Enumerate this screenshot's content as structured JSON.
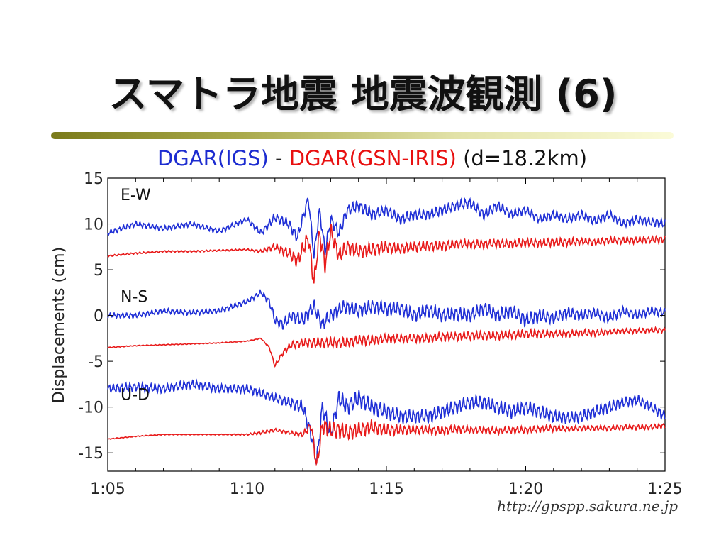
{
  "slide": {
    "title": "スマトラ地震 地震波観測 (6)",
    "subtitle_part1": "DGAR(IGS)",
    "subtitle_sep": " - ",
    "subtitle_part2": "DGAR(GSN-IRIS)",
    "subtitle_part3": " (d=18.2km)",
    "credit": "http://gpspp.sakura.ne.jp"
  },
  "chart_data": {
    "type": "line",
    "ylabel": "Displacements (cm)",
    "xlabel": "",
    "x_ticks": [
      "1:05",
      "1:10",
      "1:15",
      "1:20",
      "1:25"
    ],
    "x_range_minutes": [
      65,
      85
    ],
    "ylim": [
      -17,
      15
    ],
    "y_ticks": [
      15,
      10,
      5,
      0,
      -5,
      -10,
      -15
    ],
    "grid": false,
    "colors": {
      "igs": "#1f2fd6",
      "gsn": "#e81a1a"
    },
    "panels": [
      {
        "label": "E-W",
        "series": [
          {
            "source": "DGAR(IGS)",
            "color": "#1f2fd6",
            "x": [
              65,
              66,
              67,
              68,
              69,
              70,
              70.5,
              71,
              71.5,
              71.8,
              72.2,
              72.4,
              72.6,
              72.8,
              73,
              73.3,
              73.6,
              74,
              74.5,
              75,
              75.5,
              76,
              76.5,
              77,
              77.5,
              78,
              78.5,
              79,
              79.5,
              80,
              80.5,
              81,
              81.5,
              82,
              82.5,
              83,
              83.5,
              84,
              84.5,
              85
            ],
            "y": [
              9,
              10,
              9.5,
              10,
              9.2,
              10.5,
              9,
              10.7,
              10,
              8.5,
              12.8,
              6.5,
              11.5,
              7,
              10.5,
              9,
              11.5,
              12,
              11,
              11.5,
              10.5,
              11,
              11,
              11.5,
              12,
              12.3,
              11,
              12,
              11,
              11.5,
              10.5,
              11,
              10.5,
              11,
              10.3,
              11,
              10,
              10.5,
              10.2,
              10
            ],
            "wiggle_amp": [
              0.3,
              0.3,
              0.3,
              0.3,
              0.3,
              0.3,
              0.4,
              0.5,
              0.6,
              0.6,
              0.6,
              0.6,
              0.6,
              0.6,
              0.7,
              0.7,
              0.7,
              0.7,
              0.7,
              0.6,
              0.6,
              0.6,
              0.6,
              0.6,
              0.6,
              0.6,
              0.6,
              0.6,
              0.5,
              0.5,
              0.5,
              0.5,
              0.5,
              0.5,
              0.5,
              0.5,
              0.5,
              0.5,
              0.5,
              0.5
            ]
          },
          {
            "source": "DGAR(GSN-IRIS)",
            "color": "#e81a1a",
            "x": [
              65,
              66,
              67,
              68,
              69,
              70,
              70.5,
              71,
              71.5,
              71.8,
              72.2,
              72.4,
              72.6,
              72.8,
              73,
              73.3,
              73.6,
              74,
              74.5,
              75,
              75.5,
              76,
              76.5,
              77,
              77.5,
              78,
              78.5,
              79,
              79.5,
              80,
              80.5,
              81,
              81.5,
              82,
              82.5,
              83,
              83.5,
              84,
              84.5,
              85
            ],
            "y": [
              6.5,
              6.8,
              7,
              7,
              7.1,
              7.2,
              7,
              7.5,
              6.8,
              6,
              8.5,
              3.5,
              9,
              5.5,
              9.2,
              6.5,
              7.5,
              7,
              7.2,
              7.5,
              7.3,
              7.5,
              7.6,
              7.6,
              7.8,
              7.8,
              7.8,
              7.9,
              7.8,
              8,
              7.9,
              8,
              8,
              8.1,
              8,
              8.2,
              8.2,
              8.2,
              8.3,
              8.3
            ],
            "wiggle_amp": [
              0.1,
              0.1,
              0.1,
              0.1,
              0.1,
              0.1,
              0.2,
              0.4,
              0.6,
              0.8,
              1.0,
              1.0,
              1.0,
              1.0,
              1.0,
              0.9,
              0.9,
              0.8,
              0.8,
              0.7,
              0.6,
              0.6,
              0.6,
              0.6,
              0.5,
              0.5,
              0.5,
              0.5,
              0.5,
              0.5,
              0.5,
              0.5,
              0.5,
              0.4,
              0.4,
              0.4,
              0.4,
              0.4,
              0.4,
              0.4
            ]
          }
        ]
      },
      {
        "label": "N-S",
        "series": [
          {
            "source": "DGAR(IGS)",
            "color": "#1f2fd6",
            "x": [
              65,
              66,
              67,
              68,
              69,
              70,
              70.5,
              70.8,
              71,
              71.3,
              71.6,
              72,
              72.4,
              72.7,
              73,
              73.5,
              74,
              74.5,
              75,
              75.5,
              76,
              76.5,
              77,
              77.5,
              78,
              78.5,
              79,
              79.5,
              80,
              80.5,
              81,
              81.5,
              82,
              82.5,
              83,
              83.5,
              84,
              84.5,
              85
            ],
            "y": [
              0,
              0,
              0.5,
              0.3,
              0.5,
              1.5,
              2.5,
              1.5,
              -0.5,
              -1,
              0,
              -0.5,
              1,
              -1,
              0,
              1,
              0.5,
              1,
              0.7,
              0.8,
              0,
              0.6,
              0,
              0.2,
              0,
              0.8,
              0,
              0.5,
              -0.5,
              0,
              -0.3,
              0.3,
              0,
              0.3,
              -0.3,
              0.5,
              0,
              0.5,
              0.3
            ],
            "wiggle_amp": [
              0.3,
              0.3,
              0.3,
              0.3,
              0.3,
              0.3,
              0.3,
              0.4,
              0.5,
              0.6,
              0.7,
              0.8,
              0.8,
              0.8,
              0.8,
              0.8,
              0.8,
              0.8,
              0.8,
              0.8,
              0.8,
              0.8,
              0.8,
              0.8,
              0.8,
              0.8,
              0.8,
              0.8,
              0.8,
              0.8,
              0.7,
              0.7,
              0.6,
              0.6,
              0.6,
              0.5,
              0.5,
              0.5,
              0.5
            ]
          },
          {
            "source": "DGAR(GSN-IRIS)",
            "color": "#e81a1a",
            "x": [
              65,
              66,
              67,
              68,
              69,
              70,
              70.5,
              70.8,
              71,
              71.3,
              71.6,
              72,
              72.4,
              72.7,
              73,
              73.5,
              74,
              74.5,
              75,
              75.5,
              76,
              76.5,
              77,
              77.5,
              78,
              78.5,
              79,
              79.5,
              80,
              80.5,
              81,
              81.5,
              82,
              82.5,
              83,
              83.5,
              84,
              84.5,
              85
            ],
            "y": [
              -3.5,
              -3.3,
              -3.2,
              -3.1,
              -3,
              -2.8,
              -2.5,
              -3.5,
              -5.5,
              -4,
              -3.2,
              -3,
              -3,
              -3,
              -3,
              -3,
              -2.7,
              -2.7,
              -2.5,
              -2.5,
              -2.5,
              -2.5,
              -2.3,
              -2.3,
              -2.2,
              -2.2,
              -2.2,
              -2.1,
              -2,
              -2,
              -2,
              -2,
              -1.9,
              -1.9,
              -1.8,
              -1.7,
              -1.7,
              -1.6,
              -1.6
            ],
            "wiggle_amp": [
              0.05,
              0.05,
              0.05,
              0.05,
              0.05,
              0.05,
              0.05,
              0.1,
              0.2,
              0.3,
              0.4,
              0.5,
              0.6,
              0.6,
              0.6,
              0.6,
              0.6,
              0.6,
              0.5,
              0.5,
              0.5,
              0.5,
              0.5,
              0.5,
              0.5,
              0.5,
              0.5,
              0.5,
              0.5,
              0.5,
              0.4,
              0.4,
              0.4,
              0.4,
              0.3,
              0.3,
              0.3,
              0.3,
              0.3
            ]
          }
        ]
      },
      {
        "label": "U-D",
        "series": [
          {
            "source": "DGAR(IGS)",
            "color": "#1f2fd6",
            "x": [
              65,
              66,
              67,
              68,
              69,
              70,
              70.5,
              71,
              71.5,
              72,
              72.3,
              72.5,
              72.7,
              73,
              73.3,
              73.6,
              74,
              74.5,
              75,
              75.5,
              76,
              76.5,
              77,
              77.5,
              78,
              78.5,
              79,
              79.5,
              80,
              80.5,
              81,
              81.5,
              82,
              82.5,
              83,
              83.5,
              84,
              84.5,
              85
            ],
            "y": [
              -8,
              -7.8,
              -8,
              -7.5,
              -8,
              -8,
              -8.5,
              -9,
              -9.5,
              -10,
              -13,
              -16,
              -10,
              -13,
              -9,
              -10,
              -9,
              -10,
              -10.5,
              -11,
              -11,
              -11,
              -10.5,
              -10,
              -9.5,
              -9.5,
              -10,
              -10.5,
              -10,
              -10.5,
              -11,
              -11.2,
              -11,
              -10.5,
              -10,
              -9.5,
              -9.2,
              -10,
              -11
            ],
            "wiggle_amp": [
              0.5,
              0.5,
              0.5,
              0.5,
              0.5,
              0.5,
              0.5,
              0.5,
              0.6,
              0.8,
              0.9,
              0.9,
              1.0,
              1.0,
              1.0,
              1.0,
              1.0,
              0.9,
              0.9,
              0.8,
              0.8,
              0.8,
              0.8,
              0.8,
              0.8,
              0.8,
              0.8,
              0.8,
              0.8,
              0.8,
              0.7,
              0.7,
              0.7,
              0.7,
              0.7,
              0.6,
              0.6,
              0.6,
              0.6
            ]
          },
          {
            "source": "DGAR(GSN-IRIS)",
            "color": "#e81a1a",
            "x": [
              65,
              66,
              67,
              68,
              69,
              70,
              70.5,
              71,
              71.5,
              72,
              72.3,
              72.5,
              72.7,
              73,
              73.3,
              73.6,
              74,
              74.5,
              75,
              75.5,
              76,
              76.5,
              77,
              77.5,
              78,
              78.5,
              79,
              79.5,
              80,
              80.5,
              81,
              81.5,
              82,
              82.5,
              83,
              83.5,
              84,
              84.5,
              85
            ],
            "y": [
              -13.5,
              -13.2,
              -13,
              -13,
              -13,
              -13,
              -12.8,
              -12.5,
              -12.8,
              -13,
              -12,
              -16.5,
              -12,
              -12.5,
              -12.5,
              -12.8,
              -12.5,
              -12.2,
              -12.5,
              -12.5,
              -12.5,
              -12.5,
              -12.6,
              -12.4,
              -12.5,
              -12.5,
              -12.6,
              -12.5,
              -12.5,
              -12.4,
              -12.3,
              -12.4,
              -12.3,
              -12.3,
              -12.3,
              -12.2,
              -12.2,
              -12.2,
              -12
            ],
            "wiggle_amp": [
              0.05,
              0.05,
              0.05,
              0.05,
              0.05,
              0.1,
              0.2,
              0.2,
              0.2,
              0.3,
              0.6,
              0.9,
              1.0,
              1.0,
              1.0,
              0.9,
              0.9,
              0.8,
              0.7,
              0.6,
              0.5,
              0.5,
              0.5,
              0.5,
              0.4,
              0.4,
              0.4,
              0.4,
              0.4,
              0.4,
              0.4,
              0.3,
              0.3,
              0.3,
              0.3,
              0.3,
              0.3,
              0.3,
              0.3
            ]
          }
        ]
      }
    ]
  }
}
